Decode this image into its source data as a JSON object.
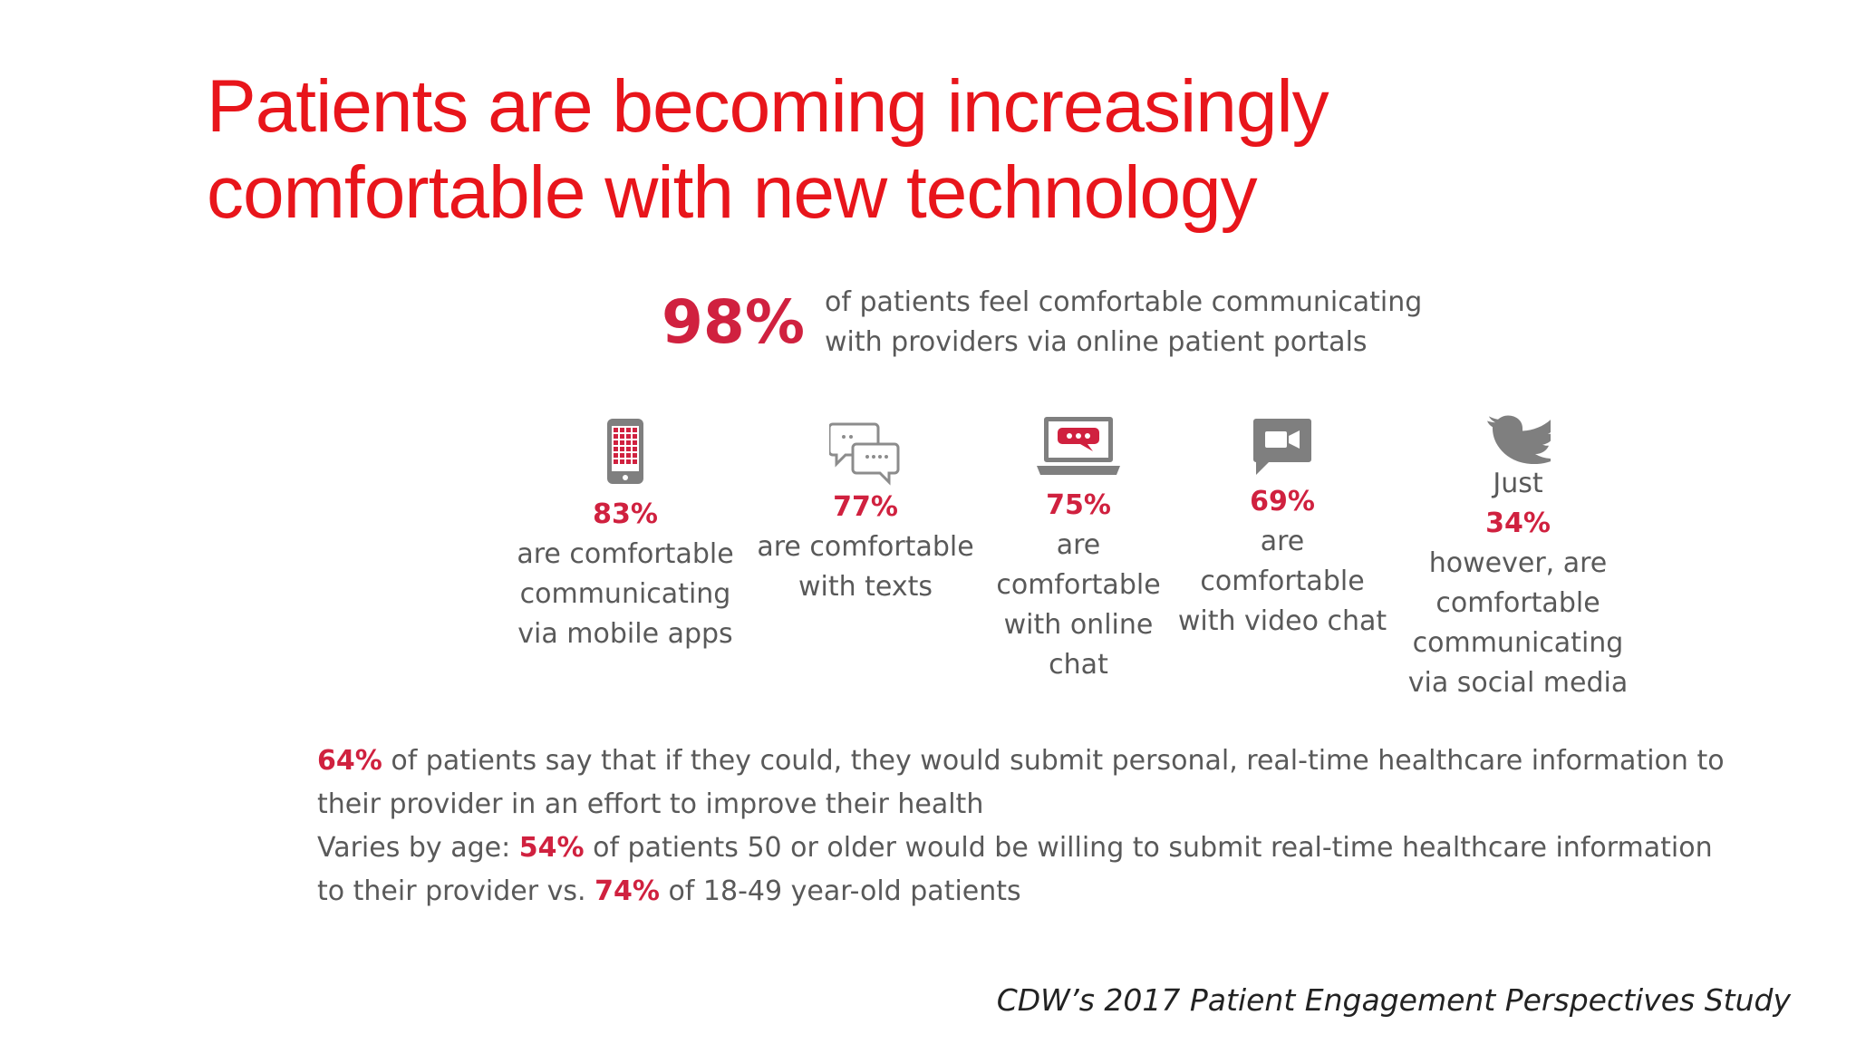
{
  "slide": {
    "title_line1": "Patients are becoming increasingly",
    "title_line2": "comfortable with new technology",
    "accent_color": "#e8151b",
    "highlight_color": "#d0213f"
  },
  "hero": {
    "percent": "98%",
    "text_line1": "of patients feel comfortable communicating",
    "text_line2": "with providers via online patient portals"
  },
  "stats": [
    {
      "icon": "mobile-phone-icon",
      "percent": "83%",
      "lines": [
        "are comfortable",
        "communicating",
        "via mobile apps"
      ]
    },
    {
      "icon": "speech-bubbles-icon",
      "percent": "77%",
      "lines": [
        "are comfortable",
        "with texts"
      ]
    },
    {
      "icon": "laptop-chat-icon",
      "percent": "75%",
      "lines": [
        "are",
        "comfortable",
        "with online",
        "chat"
      ]
    },
    {
      "icon": "video-chat-icon",
      "percent": "69%",
      "lines": [
        "are",
        "comfortable",
        "with video chat"
      ]
    },
    {
      "icon": "bird-icon",
      "prefix": "Just",
      "percent": "34%",
      "lines": [
        "however, are",
        "comfortable",
        "communicating",
        "via social media"
      ]
    }
  ],
  "bottom": {
    "p1_pct": "64%",
    "p1_text_a": " of patients say that if they could, they would submit personal, real-time healthcare information to",
    "p1_text_b": "their provider in  an effort to improve their health",
    "p2_lead": "Varies by age:  ",
    "p2_pct1": "54%",
    "p2_text_a": " of patients 50 or older would be willing to submit real-time  healthcare information",
    "p2_text_b": "to  their provider vs. ",
    "p2_pct2": "74%",
    "p2_text_c": " of 18-49 year-old patients"
  },
  "source": "CDW’s 2017 Patient Engagement Perspectives Study"
}
